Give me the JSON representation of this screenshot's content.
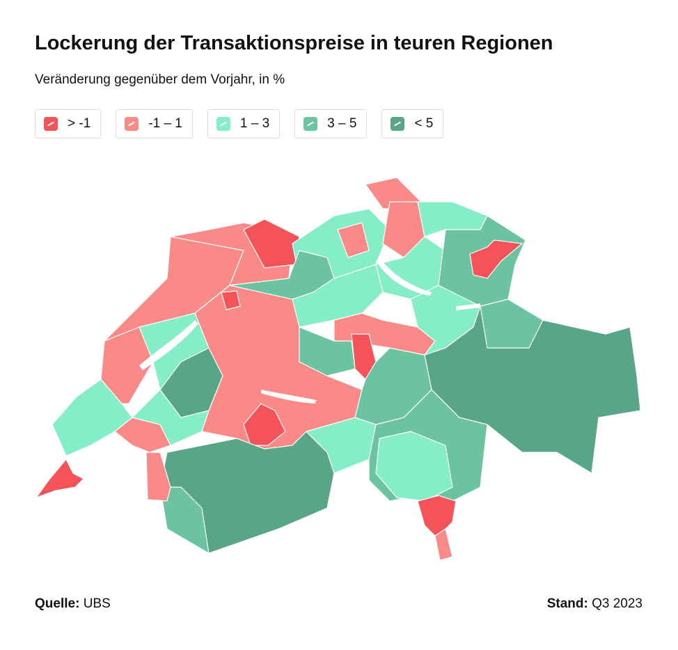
{
  "header": {
    "title": "Lockerung der Transaktionspreise in teuren Regionen",
    "subtitle": "Veränderung gegenüber dem Vorjahr, in %"
  },
  "legend": [
    {
      "label": "> -1",
      "color": "#f4535a"
    },
    {
      "label": "-1 – 1",
      "color": "#fa8a87"
    },
    {
      "label": "1 – 3",
      "color": "#86eec6"
    },
    {
      "label": "3 – 5",
      "color": "#6cc39f"
    },
    {
      "label": "< 5",
      "color": "#58a685"
    }
  ],
  "footer": {
    "source_label": "Quelle:",
    "source": "UBS",
    "date_label": "Stand:",
    "date": "Q3 2023"
  }
}
